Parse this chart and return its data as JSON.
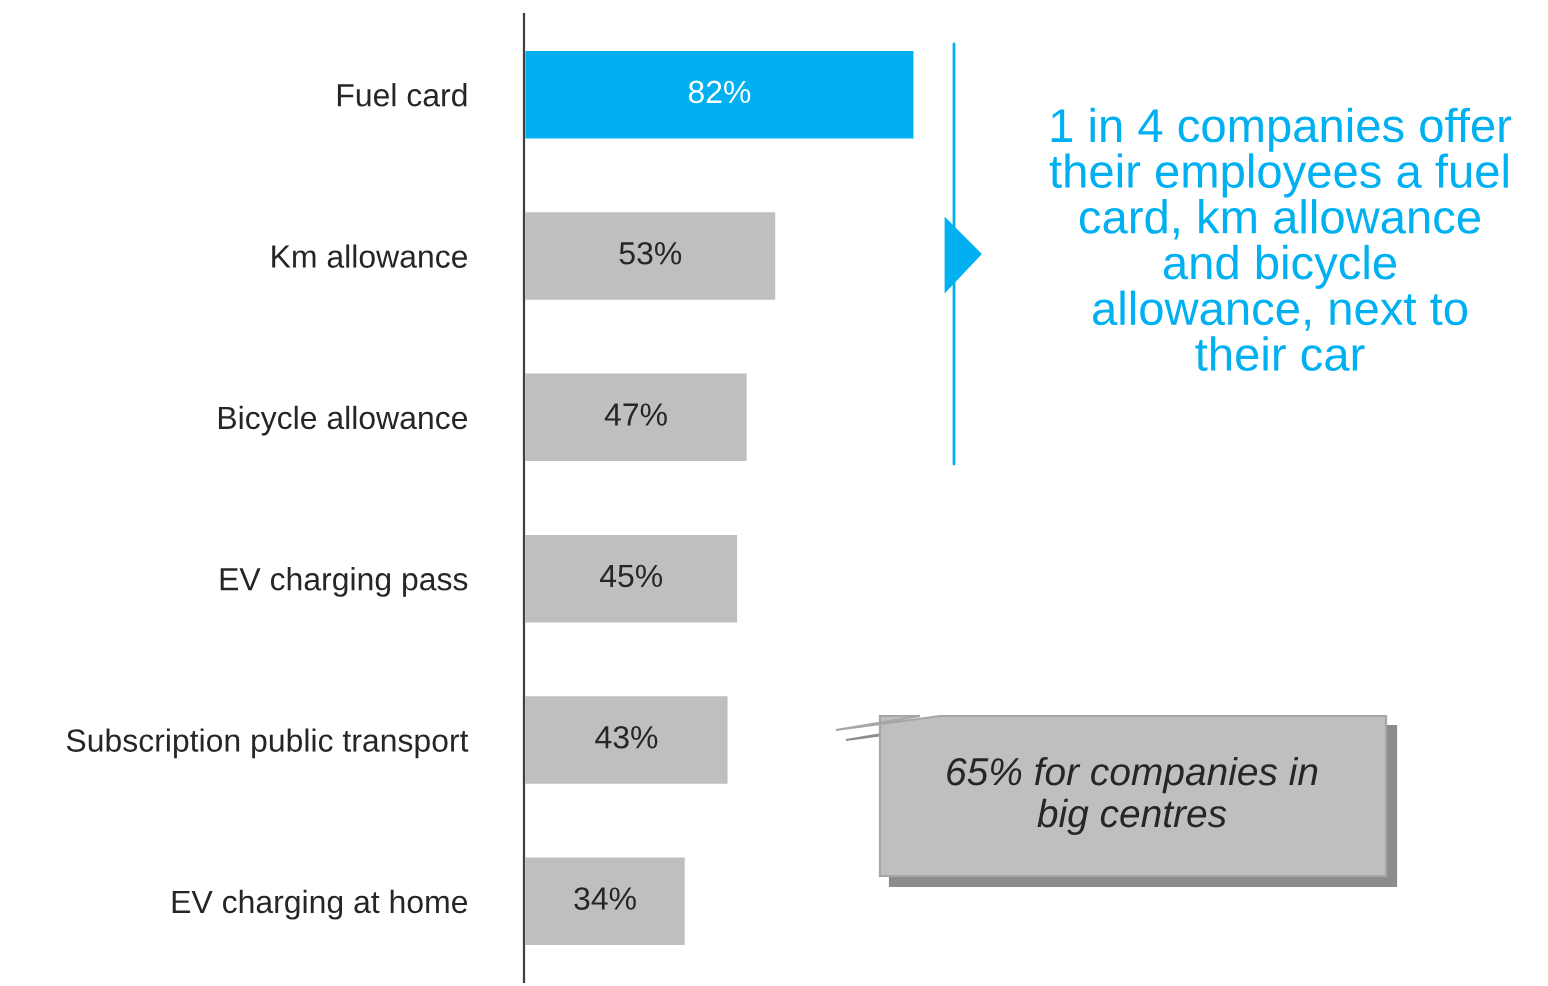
{
  "chart_data": {
    "type": "bar",
    "orientation": "horizontal",
    "categories": [
      "Fuel card",
      "Km allowance",
      "Bicycle allowance",
      "EV charging pass",
      "Subscription public transport",
      "EV charging at home"
    ],
    "values": [
      82,
      53,
      47,
      45,
      43,
      34
    ],
    "value_labels": [
      "82%",
      "53%",
      "47%",
      "45%",
      "43%",
      "34%"
    ],
    "colors": [
      "#00b0f0",
      "#bfbfbf",
      "#bfbfbf",
      "#bfbfbf",
      "#bfbfbf",
      "#bfbfbf"
    ],
    "annotations": [
      "1 in 4 companies offer\ntheir employees a fuel\ncard, km allowance\nand bicycle\nallowance, next to\ntheir car",
      "65% for companies in\nbig centres"
    ],
    "grid": false,
    "legend": false
  }
}
